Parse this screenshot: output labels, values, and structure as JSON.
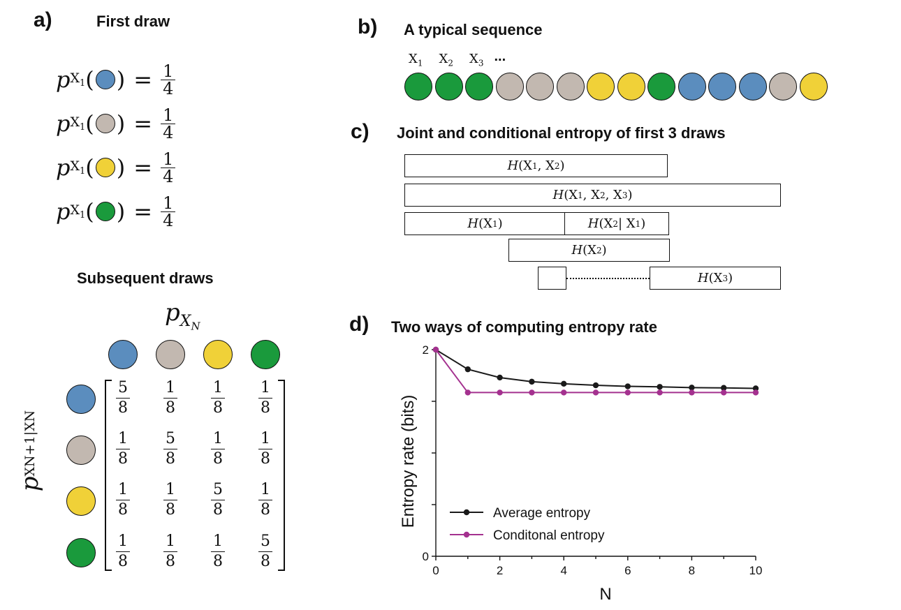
{
  "colors": {
    "blue": "#5b8dbe",
    "gray": "#c2b8b0",
    "yellow": "#f0d138",
    "green": "#1a9a3c",
    "avg": "#1a1a1a",
    "cond": "#a4318f"
  },
  "panel_a": {
    "label": "a)",
    "title": "First draw",
    "equations": [
      {
        "ball": "blue",
        "num": "1",
        "den": "4"
      },
      {
        "ball": "gray",
        "num": "1",
        "den": "4"
      },
      {
        "ball": "yellow",
        "num": "1",
        "den": "4"
      },
      {
        "ball": "green",
        "num": "1",
        "den": "4"
      }
    ],
    "p_symbol": "p",
    "p_sub": "X",
    "p_sub_index": "1",
    "equals": "=",
    "subsequent_title": "Subsequent draws",
    "col_symbol": "p",
    "col_sub": "X",
    "col_sub_index": "N",
    "row_symbol": "p",
    "row_sub": "XN+1|XN",
    "col_balls": [
      "blue",
      "gray",
      "yellow",
      "green"
    ],
    "row_balls": [
      "blue",
      "gray",
      "yellow",
      "green"
    ],
    "matrix": [
      [
        {
          "n": "5",
          "d": "8"
        },
        {
          "n": "1",
          "d": "8"
        },
        {
          "n": "1",
          "d": "8"
        },
        {
          "n": "1",
          "d": "8"
        }
      ],
      [
        {
          "n": "1",
          "d": "8"
        },
        {
          "n": "5",
          "d": "8"
        },
        {
          "n": "1",
          "d": "8"
        },
        {
          "n": "1",
          "d": "8"
        }
      ],
      [
        {
          "n": "1",
          "d": "8"
        },
        {
          "n": "1",
          "d": "8"
        },
        {
          "n": "5",
          "d": "8"
        },
        {
          "n": "1",
          "d": "8"
        }
      ],
      [
        {
          "n": "1",
          "d": "8"
        },
        {
          "n": "1",
          "d": "8"
        },
        {
          "n": "1",
          "d": "8"
        },
        {
          "n": "5",
          "d": "8"
        }
      ]
    ]
  },
  "panel_b": {
    "label": "b)",
    "title": "A typical sequence",
    "seq_labels": [
      "X1",
      "X2",
      "X3"
    ],
    "ellipsis": "...",
    "sequence": [
      "green",
      "green",
      "green",
      "gray",
      "gray",
      "gray",
      "yellow",
      "yellow",
      "green",
      "blue",
      "blue",
      "blue",
      "gray",
      "yellow"
    ]
  },
  "panel_c": {
    "label": "c)",
    "title": "Joint and conditional entropy of first 3 draws",
    "boxes": {
      "h12": "H(X1, X2)",
      "h123": "H(X1, X2, X3)",
      "h1": "H(X1)",
      "h2g1": "H(X2 | X1)",
      "h2": "H(X2)",
      "h3": "H(X3)"
    }
  },
  "panel_d": {
    "label": "d)",
    "title": "Two ways of computing entropy rate"
  },
  "chart_data": {
    "type": "line",
    "xlabel": "N",
    "ylabel": "Entropy rate (bits)",
    "xlim": [
      0,
      10
    ],
    "ylim": [
      0,
      2
    ],
    "x_ticks": [
      "0",
      "2",
      "4",
      "6",
      "8",
      "10"
    ],
    "y_ticks": [
      "0",
      "2"
    ],
    "x": [
      0,
      1,
      2,
      3,
      4,
      5,
      6,
      7,
      8,
      9,
      10
    ],
    "series": [
      {
        "name": "Average entropy",
        "color": "#1a1a1a",
        "values": [
          2.0,
          1.81,
          1.73,
          1.69,
          1.67,
          1.655,
          1.645,
          1.64,
          1.633,
          1.63,
          1.625
        ]
      },
      {
        "name": "Conditonal entropy",
        "color": "#a4318f",
        "values": [
          2.0,
          1.585,
          1.585,
          1.585,
          1.585,
          1.585,
          1.585,
          1.585,
          1.585,
          1.585,
          1.585
        ]
      }
    ],
    "legend": "bottom-left",
    "grid": false
  }
}
